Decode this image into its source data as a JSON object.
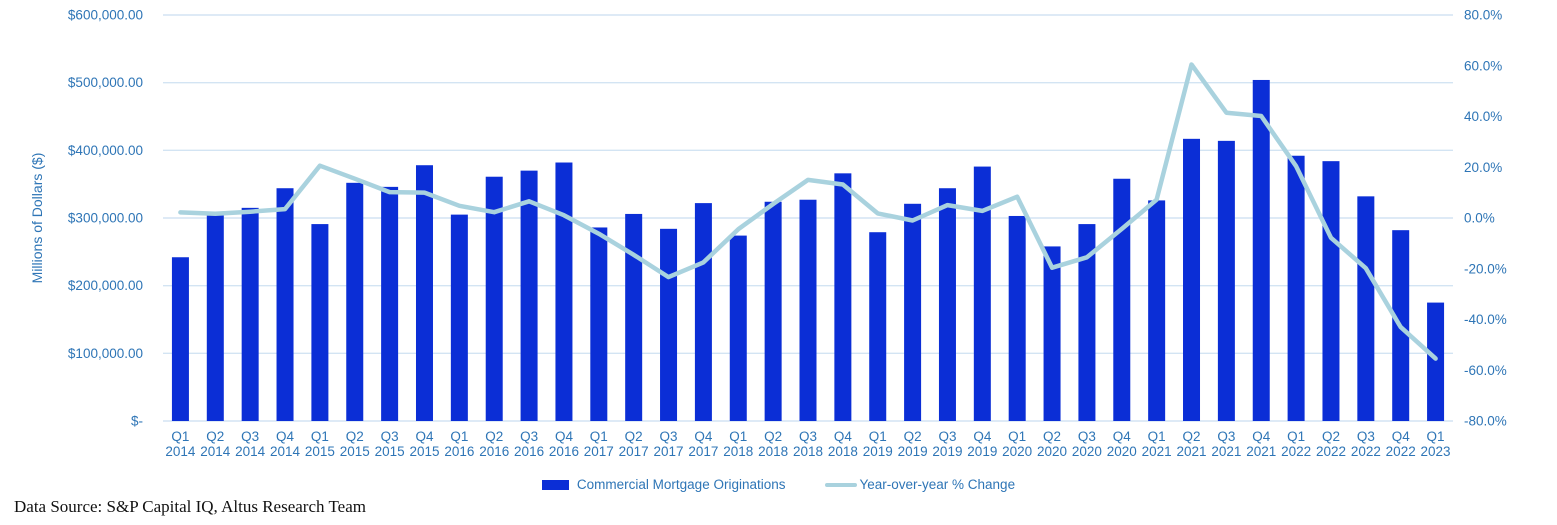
{
  "colors": {
    "bar": "#0b2ed6",
    "line": "#a9d2de",
    "axis_text": "#2e75b6",
    "gridline": "#d3e4f3",
    "footer_text": "#111111"
  },
  "footer": {
    "text": "Data Source: S&P Capital IQ, Altus Research Team"
  },
  "chart_data": {
    "type": "bar",
    "subtype": "combo-bar-line-dual-axis",
    "title": "",
    "grid": "horizontal-only",
    "legend_position": "bottom-center",
    "categories": [
      "Q1 2014",
      "Q2 2014",
      "Q3 2014",
      "Q4 2014",
      "Q1 2015",
      "Q2 2015",
      "Q3 2015",
      "Q4 2015",
      "Q1 2016",
      "Q2 2016",
      "Q3 2016",
      "Q4 2016",
      "Q1 2017",
      "Q2 2017",
      "Q3 2017",
      "Q4 2017",
      "Q1 2018",
      "Q2 2018",
      "Q3 2018",
      "Q4 2018",
      "Q1 2019",
      "Q2 2019",
      "Q3 2019",
      "Q4 2019",
      "Q1 2020",
      "Q2 2020",
      "Q3 2020",
      "Q4 2020",
      "Q1 2021",
      "Q2 2021",
      "Q3 2021",
      "Q4 2021",
      "Q1 2022",
      "Q2 2022",
      "Q3 2022",
      "Q4 2022",
      "Q1 2023"
    ],
    "series": [
      {
        "name": "Commercial Mortgage Originations",
        "type": "bar",
        "axis": "left",
        "values": [
          242000,
          304000,
          315000,
          344000,
          291000,
          352000,
          346000,
          378000,
          305000,
          361000,
          370000,
          382000,
          286000,
          306000,
          284000,
          322000,
          274000,
          324000,
          327000,
          366000,
          279000,
          321000,
          344000,
          376000,
          303000,
          258000,
          291000,
          358000,
          326000,
          417000,
          414000,
          504000,
          392000,
          384000,
          332000,
          282000,
          175000
        ]
      },
      {
        "name": "Year-over-year % Change",
        "type": "line",
        "axis": "right",
        "values": [
          2.2,
          1.7,
          2.5,
          3.5,
          20.6,
          15.5,
          10.2,
          10.0,
          4.8,
          2.3,
          6.6,
          1.1,
          -6.2,
          -14.5,
          -23.3,
          -17.5,
          -4.4,
          5.5,
          15.0,
          13.2,
          1.8,
          -1.0,
          5.1,
          2.8,
          8.4,
          -19.6,
          -15.5,
          -4.3,
          7.2,
          60.5,
          41.5,
          40.2,
          20.4,
          -7.8,
          -19.8,
          -43.0,
          -55.4
        ]
      }
    ],
    "left_axis": {
      "title": "Millions of Dollars ($)",
      "min": 0,
      "max": 600000,
      "tick_labels": [
        "$600,000.00",
        "$500,000.00",
        "$400,000.00",
        "$300,000.00",
        "$200,000.00",
        "$100,000.00",
        "$-"
      ]
    },
    "right_axis": {
      "title": "",
      "min": -80,
      "max": 80,
      "tick_labels": [
        "80.0%",
        "60.0%",
        "40.0%",
        "20.0%",
        "0.0%",
        "-20.0%",
        "-40.0%",
        "-60.0%",
        "-80.0%"
      ]
    }
  }
}
